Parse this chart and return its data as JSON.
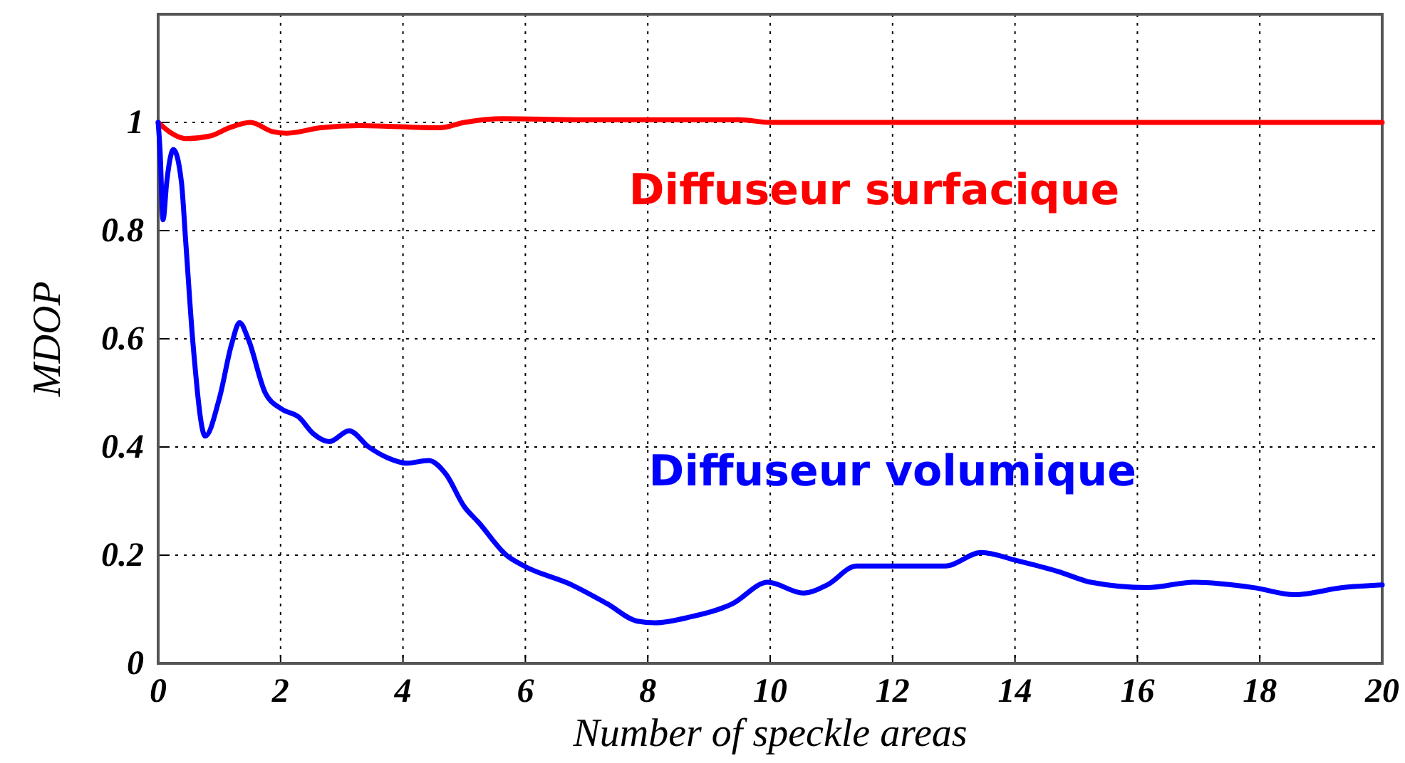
{
  "chart_data": {
    "type": "line",
    "xlabel": "Number of speckle areas",
    "ylabel": "MDOP",
    "xlim": [
      0,
      20
    ],
    "ylim": [
      0,
      1.2
    ],
    "xticks": [
      0,
      2,
      4,
      6,
      8,
      10,
      12,
      14,
      16,
      18,
      20
    ],
    "yticks": [
      0,
      0.2,
      0.4,
      0.6,
      0.8,
      1
    ],
    "grid": true,
    "legend": false,
    "marker": "none",
    "line_style": "solid",
    "series": [
      {
        "name": "Diffuseur surfacique",
        "color": "#ff0000",
        "x": [
          0,
          0.22,
          0.45,
          0.85,
          1.16,
          1.51,
          1.87,
          2.1,
          2.65,
          3.28,
          4.6,
          5.0,
          5.63,
          7,
          8.5,
          9.5,
          10,
          12,
          14,
          16,
          18,
          20
        ],
        "values": [
          1.0,
          0.98,
          0.97,
          0.975,
          0.99,
          1.0,
          0.983,
          0.98,
          0.99,
          0.994,
          0.99,
          1.0,
          1.007,
          1.005,
          1.005,
          1.005,
          1.0,
          1.0,
          1.0,
          1.0,
          1.0,
          1.0
        ]
      },
      {
        "name": "Diffuseur volumique",
        "color": "#0000ff",
        "x": [
          0,
          0.03,
          0.08,
          0.14,
          0.25,
          0.38,
          0.45,
          0.57,
          0.77,
          1.0,
          1.2,
          1.33,
          1.47,
          1.75,
          2.02,
          2.3,
          2.53,
          2.8,
          3.12,
          3.44,
          3.75,
          4.06,
          4.42,
          4.7,
          5.0,
          5.24,
          5.69,
          5.98,
          6.76,
          7.34,
          7.83,
          8.12,
          8.7,
          9.38,
          9.96,
          10.54,
          10.93,
          11.41,
          12.09,
          12.86,
          13.45,
          14.03,
          14.7,
          15.24,
          16.16,
          16.93,
          17.9,
          18.57,
          19.35,
          20
        ],
        "values": [
          1.0,
          0.95,
          0.82,
          0.89,
          0.95,
          0.89,
          0.78,
          0.59,
          0.42,
          0.49,
          0.59,
          0.63,
          0.6,
          0.5,
          0.47,
          0.455,
          0.425,
          0.41,
          0.43,
          0.4,
          0.38,
          0.37,
          0.375,
          0.35,
          0.29,
          0.26,
          0.2,
          0.18,
          0.145,
          0.11,
          0.078,
          0.075,
          0.086,
          0.11,
          0.15,
          0.13,
          0.145,
          0.18,
          0.18,
          0.18,
          0.205,
          0.19,
          0.17,
          0.15,
          0.14,
          0.15,
          0.14,
          0.127,
          0.14,
          0.145
        ]
      }
    ]
  }
}
